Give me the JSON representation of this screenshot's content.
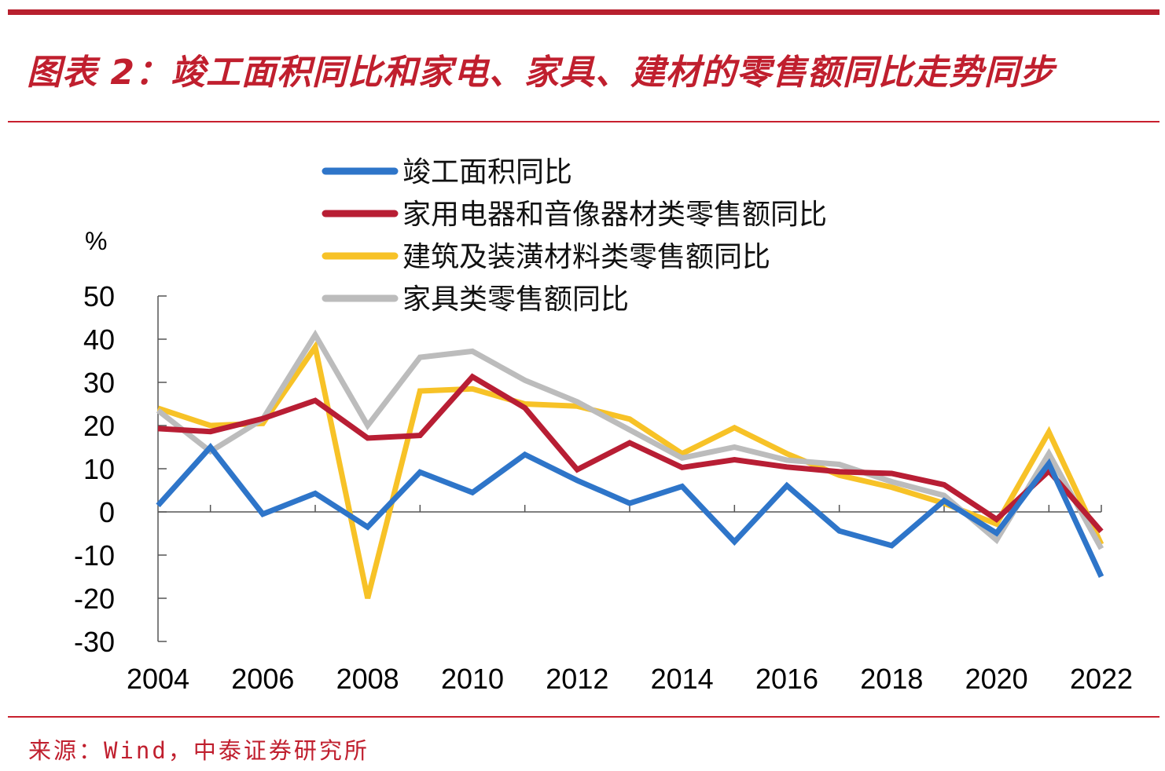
{
  "title": "图表 2：竣工面积同比和家电、家具、建材的零售额同比走势同步",
  "source": "来源：Wind，中泰证券研究所",
  "chart_data": {
    "type": "line",
    "y_unit": "%",
    "x": [
      2004,
      2005,
      2006,
      2007,
      2008,
      2009,
      2010,
      2011,
      2012,
      2013,
      2014,
      2015,
      2016,
      2017,
      2018,
      2019,
      2020,
      2021,
      2022
    ],
    "xlim": [
      2004,
      2022
    ],
    "x_ticks": [
      "2004",
      "2006",
      "2008",
      "2010",
      "2012",
      "2014",
      "2016",
      "2018",
      "2020",
      "2022"
    ],
    "ylim": [
      -30,
      50
    ],
    "y_ticks": [
      "50",
      "40",
      "30",
      "20",
      "10",
      "0",
      "-10",
      "-20",
      "-30"
    ],
    "grid": false,
    "legend_position": "top",
    "series": [
      {
        "name": "竣工面积同比",
        "color": "#2e75c9",
        "values": [
          1.5,
          15,
          -0.5,
          4.3,
          -3.5,
          9.2,
          4.5,
          13.3,
          7.3,
          2.0,
          5.9,
          -6.9,
          6.1,
          -4.4,
          -7.8,
          2.6,
          -4.9,
          11.2,
          -15.0
        ]
      },
      {
        "name": "家用电器和音像器材类零售额同比",
        "color": "#b81e34",
        "values": [
          19.3,
          18.6,
          21.6,
          25.8,
          17.1,
          17.7,
          31.3,
          24.1,
          9.8,
          16.0,
          10.3,
          12.1,
          10.4,
          9.3,
          8.9,
          6.3,
          -1.7,
          9.5,
          -4.5
        ]
      },
      {
        "name": "建筑及装潢材料类零售额同比",
        "color": "#f7c227",
        "values": [
          24.0,
          20.0,
          20.5,
          38.2,
          -20.0,
          28.0,
          28.5,
          25.0,
          24.5,
          21.5,
          13.5,
          19.5,
          13.5,
          8.5,
          5.7,
          2.0,
          -2.8,
          18.5,
          -7.5
        ]
      },
      {
        "name": "家具类零售额同比",
        "color": "#bcbcbc",
        "values": [
          23.5,
          14.0,
          21.5,
          41.0,
          20.0,
          35.8,
          37.2,
          30.5,
          25.5,
          19.0,
          12.5,
          15.0,
          12.0,
          11.0,
          7.0,
          3.8,
          -6.5,
          13.5,
          -8.5
        ]
      }
    ]
  }
}
